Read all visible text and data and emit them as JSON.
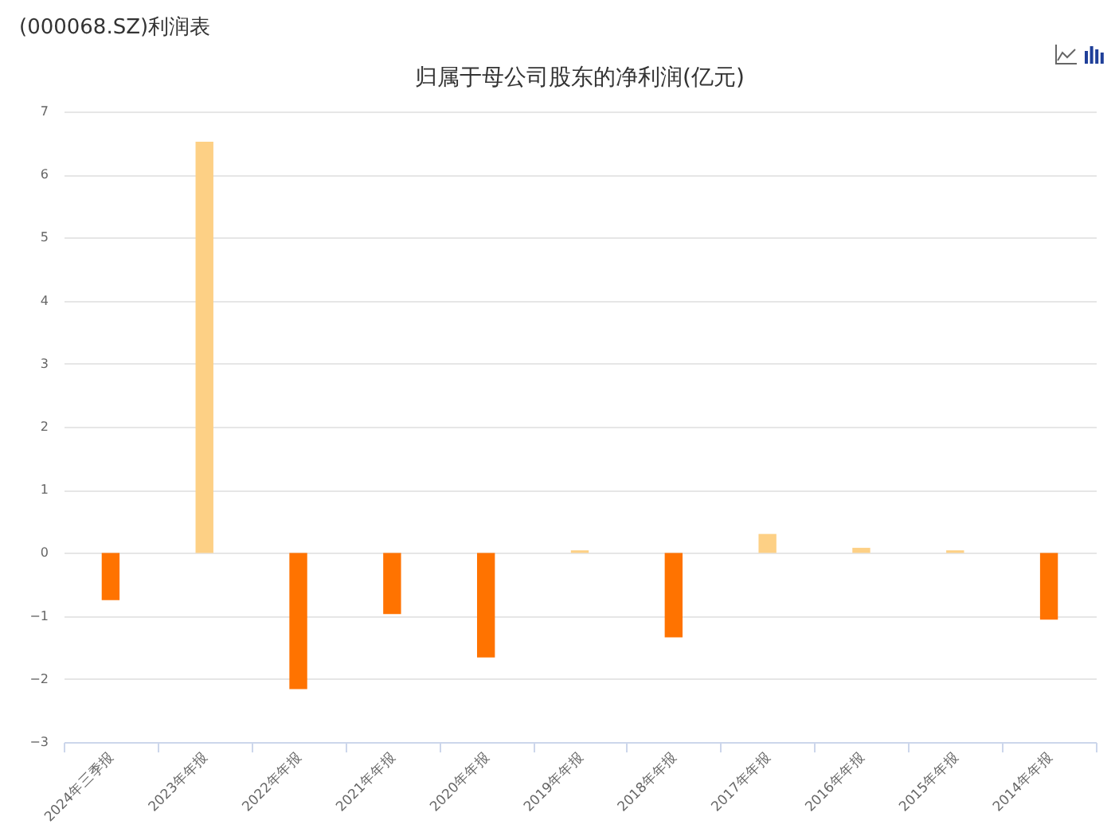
{
  "chart_data": {
    "type": "bar",
    "title": "(000068.SZ)利润表",
    "subtitle": "归属于母公司股东的净利润(亿元)",
    "categories": [
      "2024年三季报",
      "2023年年报",
      "2022年年报",
      "2021年年报",
      "2020年年报",
      "2019年年报",
      "2018年年报",
      "2017年年报",
      "2016年年报",
      "2015年年报",
      "2014年年报"
    ],
    "values": [
      -0.75,
      6.52,
      -2.16,
      -0.97,
      -1.66,
      0.04,
      -1.34,
      0.3,
      0.08,
      0.04,
      -1.06
    ],
    "colors": [
      "#ff7300",
      "#fdd085",
      "#ff7300",
      "#ff7300",
      "#ff7300",
      "#fdd085",
      "#ff7300",
      "#fdd085",
      "#fdd085",
      "#fdd085",
      "#ff7300"
    ],
    "ylim": [
      -3,
      7
    ],
    "yticks": [
      -3,
      -2,
      -1,
      0,
      1,
      2,
      3,
      4,
      5,
      6,
      7
    ],
    "grid": "y"
  }
}
